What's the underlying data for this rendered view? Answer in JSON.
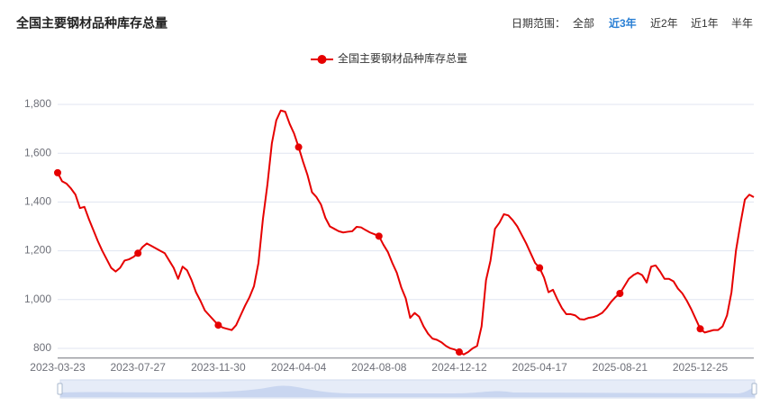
{
  "chart_data": {
    "type": "line",
    "title": "全国主要钢材品种库存总量",
    "controls": {
      "label": "日期范围：",
      "options": [
        "全部",
        "近3年",
        "近2年",
        "近1年",
        "半年"
      ],
      "active": 1
    },
    "categories": [
      "2023-03-23",
      null,
      null,
      null,
      null,
      null,
      null,
      null,
      null,
      null,
      null,
      null,
      null,
      null,
      null,
      null,
      null,
      null,
      "2023-07-27",
      null,
      null,
      null,
      null,
      null,
      null,
      null,
      null,
      null,
      null,
      null,
      null,
      null,
      null,
      null,
      null,
      null,
      "2023-11-30",
      null,
      null,
      null,
      null,
      null,
      null,
      null,
      null,
      null,
      null,
      null,
      null,
      null,
      null,
      null,
      null,
      null,
      "2024-04-04",
      null,
      null,
      null,
      null,
      null,
      null,
      null,
      null,
      null,
      null,
      null,
      null,
      null,
      null,
      null,
      null,
      null,
      "2024-08-08",
      null,
      null,
      null,
      null,
      null,
      null,
      null,
      null,
      null,
      null,
      null,
      null,
      null,
      null,
      null,
      null,
      null,
      "2024-12-12",
      null,
      null,
      null,
      null,
      null,
      null,
      null,
      null,
      null,
      null,
      null,
      null,
      null,
      null,
      null,
      null,
      null,
      "2025-04-17",
      null,
      null,
      null,
      null,
      null,
      null,
      null,
      null,
      null,
      null,
      null,
      null,
      null,
      null,
      null,
      null,
      null,
      "2025-08-21",
      null,
      null,
      null,
      null,
      null,
      null,
      null,
      null,
      null,
      null,
      null,
      null,
      null,
      null,
      null,
      null,
      null,
      "2025-12-25",
      null,
      null,
      null,
      null,
      null,
      null,
      null,
      null,
      null,
      null,
      null,
      null
    ],
    "series": [
      {
        "name": "全国主要钢材品种库存总量",
        "color": "#e60000",
        "values": [
          1520,
          1485,
          1475,
          1455,
          1430,
          1375,
          1380,
          1330,
          1285,
          1240,
          1200,
          1165,
          1130,
          1115,
          1130,
          1160,
          1165,
          1175,
          1190,
          1215,
          1230,
          1220,
          1210,
          1200,
          1190,
          1160,
          1130,
          1085,
          1135,
          1120,
          1080,
          1030,
          995,
          955,
          935,
          915,
          895,
          885,
          880,
          875,
          895,
          935,
          975,
          1010,
          1055,
          1150,
          1330,
          1470,
          1640,
          1735,
          1775,
          1770,
          1720,
          1680,
          1625,
          1565,
          1510,
          1440,
          1420,
          1390,
          1335,
          1300,
          1290,
          1280,
          1275,
          1278,
          1280,
          1298,
          1296,
          1285,
          1275,
          1268,
          1260,
          1225,
          1195,
          1150,
          1110,
          1050,
          1005,
          925,
          945,
          930,
          890,
          860,
          840,
          835,
          825,
          810,
          800,
          795,
          785,
          775,
          785,
          800,
          810,
          890,
          1080,
          1160,
          1290,
          1315,
          1350,
          1345,
          1325,
          1300,
          1265,
          1230,
          1190,
          1150,
          1130,
          1090,
          1030,
          1040,
          1000,
          965,
          940,
          940,
          935,
          920,
          918,
          925,
          928,
          935,
          945,
          965,
          990,
          1010,
          1025,
          1055,
          1085,
          1100,
          1110,
          1100,
          1070,
          1135,
          1140,
          1115,
          1085,
          1085,
          1075,
          1045,
          1025,
          995,
          960,
          920,
          880,
          865,
          870,
          875,
          875,
          890,
          935,
          1030,
          1200,
          1310,
          1410,
          1430,
          1420
        ]
      }
    ],
    "ylim": [
      760,
      1800
    ],
    "yticks": [
      800,
      {
        "value": 1000,
        "label": "1,000"
      },
      {
        "value": 1200,
        "label": "1,200"
      },
      {
        "value": 1400,
        "label": "1,400"
      },
      {
        "value": 1600,
        "label": "1,600"
      },
      {
        "value": 1800,
        "label": "1,800"
      }
    ],
    "grid": true
  }
}
